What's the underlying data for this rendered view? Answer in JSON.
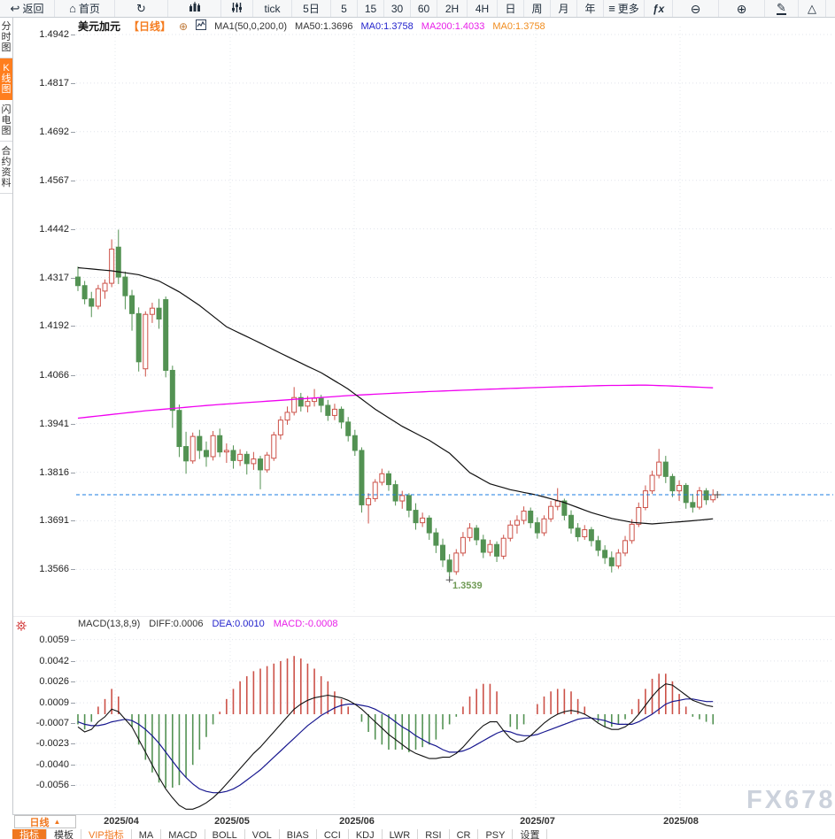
{
  "toolbar": {
    "items": [
      {
        "name": "back",
        "icon": "back-arrow-icon",
        "label": "返回"
      },
      {
        "name": "home",
        "icon": "home-icon",
        "label": "首页"
      },
      {
        "name": "refresh",
        "icon": "refresh-icon",
        "label": ""
      },
      {
        "name": "chart-type",
        "icon": "kline-chart-icon",
        "label": ""
      },
      {
        "name": "indicators",
        "icon": "indicator-sliders-icon",
        "label": ""
      },
      {
        "name": "timeframe-tick",
        "icon": "",
        "label": "tick"
      },
      {
        "name": "timeframe-5day",
        "icon": "",
        "label": "5日"
      },
      {
        "name": "timeframe-5",
        "icon": "",
        "label": "5"
      },
      {
        "name": "timeframe-15",
        "icon": "",
        "label": "15"
      },
      {
        "name": "timeframe-30",
        "icon": "",
        "label": "30"
      },
      {
        "name": "timeframe-60",
        "icon": "",
        "label": "60"
      },
      {
        "name": "timeframe-2h",
        "icon": "",
        "label": "2H"
      },
      {
        "name": "timeframe-4h",
        "icon": "",
        "label": "4H"
      },
      {
        "name": "timeframe-day",
        "icon": "",
        "label": "日"
      },
      {
        "name": "timeframe-week",
        "icon": "",
        "label": "周"
      },
      {
        "name": "timeframe-month",
        "icon": "",
        "label": "月"
      },
      {
        "name": "timeframe-year",
        "icon": "",
        "label": "年"
      },
      {
        "name": "more",
        "icon": "menu-icon",
        "label": "更多"
      },
      {
        "name": "formula",
        "icon": "fx-icon",
        "label": ""
      },
      {
        "name": "zoom-out",
        "icon": "zoom-out-icon",
        "label": ""
      },
      {
        "name": "zoom-in",
        "icon": "zoom-in-icon",
        "label": ""
      },
      {
        "name": "draw",
        "icon": "draw-pencil-icon",
        "label": ""
      },
      {
        "name": "shapes",
        "icon": "shapes-triangle-icon",
        "label": ""
      }
    ]
  },
  "sidebar": {
    "items": [
      {
        "name": "time-chart",
        "label": "分时图",
        "active": false
      },
      {
        "name": "kline-chart",
        "label": "K线图",
        "active": true
      },
      {
        "name": "lightning-chart",
        "label": "闪电图",
        "active": false
      },
      {
        "name": "contract-info",
        "label": "合约资料",
        "active": false
      }
    ]
  },
  "chart_header": {
    "symbol": "美元加元",
    "period": "【日线】",
    "ma_settings": "MA1(50,0,200,0)",
    "ma50": "MA50:1.3696",
    "ma0_blue": "MA0:1.3758",
    "ma200": "MA200:1.4033",
    "ma0_orange": "MA0:1.3758"
  },
  "macd_header": {
    "title": "MACD(13,8,9)",
    "diff": "DIFF:0.0006",
    "dea": "DEA:0.0010",
    "macd": "MACD:-0.0008"
  },
  "price_axis": [
    "1.4942",
    "1.4817",
    "1.4692",
    "1.4567",
    "1.4442",
    "1.4317",
    "1.4192",
    "1.4066",
    "1.3941",
    "1.3816",
    "1.3691",
    "1.3566"
  ],
  "macd_axis": [
    "0.0059",
    "0.0042",
    "0.0026",
    "0.0009",
    "-0.0007",
    "-0.0023",
    "-0.0040",
    "-0.0056"
  ],
  "date_axis": [
    "2025/04",
    "2025/05",
    "2025/06",
    "2025/07",
    "2025/08"
  ],
  "bottom_bar": {
    "period_label": "日线",
    "tabs": [
      {
        "name": "indicators",
        "label": "指标",
        "active": true,
        "vip": false
      },
      {
        "name": "templates",
        "label": "模板",
        "active": false,
        "vip": false
      },
      {
        "name": "vip-indicators",
        "label": "VIP指标",
        "active": false,
        "vip": true
      },
      {
        "name": "ma",
        "label": "MA",
        "active": false,
        "vip": false
      },
      {
        "name": "macd",
        "label": "MACD",
        "active": false,
        "vip": false
      },
      {
        "name": "boll",
        "label": "BOLL",
        "active": false,
        "vip": false
      },
      {
        "name": "vol",
        "label": "VOL",
        "active": false,
        "vip": false
      },
      {
        "name": "bias",
        "label": "BIAS",
        "active": false,
        "vip": false
      },
      {
        "name": "cci",
        "label": "CCI",
        "active": false,
        "vip": false
      },
      {
        "name": "kdj",
        "label": "KDJ",
        "active": false,
        "vip": false
      },
      {
        "name": "lwr",
        "label": "LWR",
        "active": false,
        "vip": false
      },
      {
        "name": "rsi",
        "label": "RSI",
        "active": false,
        "vip": false
      },
      {
        "name": "cr",
        "label": "CR",
        "active": false,
        "vip": false
      },
      {
        "name": "psy",
        "label": "PSY",
        "active": false,
        "vip": false
      },
      {
        "name": "settings",
        "label": "设置",
        "active": false,
        "vip": false
      }
    ]
  },
  "annotations": {
    "low_label": "1.3539",
    "current_price": 1.3758
  },
  "watermark": "FX678",
  "colors": {
    "accent_orange": "#ff7e1e",
    "up_candle": "#cc5148",
    "down_candle": "#539253",
    "ma50_line": "#101010",
    "ma200_line": "#f000f0",
    "diff_line": "#101010",
    "dea_line": "#17178f",
    "current_price_line": "#1b7ce0",
    "low_label_color": "#6f9a55"
  },
  "chart_data": {
    "type": "candlestick",
    "title": "美元加元 日线 (USD/CAD Daily)",
    "x_months": [
      "2025/04",
      "2025/05",
      "2025/06",
      "2025/07",
      "2025/08"
    ],
    "y_range": [
      1.3466,
      1.4992
    ],
    "grid": true,
    "high_of_range": 1.444,
    "low_of_range": 1.3539,
    "last_close": 1.3758,
    "candles": [
      [
        1.4318,
        1.4345,
        1.4282,
        1.4296
      ],
      [
        1.4296,
        1.4308,
        1.4248,
        1.4262
      ],
      [
        1.4262,
        1.428,
        1.4215,
        1.4243
      ],
      [
        1.4243,
        1.4298,
        1.4235,
        1.4288
      ],
      [
        1.4282,
        1.4312,
        1.4262,
        1.4302
      ],
      [
        1.4302,
        1.4415,
        1.4292,
        1.439
      ],
      [
        1.4395,
        1.444,
        1.43,
        1.4318
      ],
      [
        1.4318,
        1.4332,
        1.4235,
        1.427
      ],
      [
        1.427,
        1.4285,
        1.418,
        1.4224
      ],
      [
        1.4224,
        1.424,
        1.4075,
        1.41
      ],
      [
        1.4082,
        1.423,
        1.4062,
        1.4222
      ],
      [
        1.4222,
        1.4252,
        1.42,
        1.4238
      ],
      [
        1.4238,
        1.4262,
        1.4185,
        1.421
      ],
      [
        1.426,
        1.4268,
        1.406,
        1.4078
      ],
      [
        1.4078,
        1.409,
        1.393,
        1.3975
      ],
      [
        1.3975,
        1.399,
        1.3855,
        1.3882
      ],
      [
        1.3882,
        1.392,
        1.3812,
        1.3845
      ],
      [
        1.3845,
        1.3918,
        1.3838,
        1.3908
      ],
      [
        1.3908,
        1.3925,
        1.385,
        1.3872
      ],
      [
        1.3872,
        1.3895,
        1.383,
        1.3856
      ],
      [
        1.3856,
        1.3922,
        1.3846,
        1.391
      ],
      [
        1.391,
        1.3928,
        1.3855,
        1.3868
      ],
      [
        1.3868,
        1.389,
        1.384,
        1.3872
      ],
      [
        1.3872,
        1.3885,
        1.3825,
        1.3846
      ],
      [
        1.3846,
        1.3875,
        1.3832,
        1.3862
      ],
      [
        1.3862,
        1.387,
        1.381,
        1.3838
      ],
      [
        1.3838,
        1.3868,
        1.3822,
        1.385
      ],
      [
        1.385,
        1.3858,
        1.3772,
        1.3822
      ],
      [
        1.3822,
        1.3868,
        1.3815,
        1.386
      ],
      [
        1.3852,
        1.392,
        1.3845,
        1.3912
      ],
      [
        1.3912,
        1.396,
        1.39,
        1.395
      ],
      [
        1.395,
        1.3985,
        1.3938,
        1.397
      ],
      [
        1.397,
        1.4035,
        1.3962,
        1.4008
      ],
      [
        1.4008,
        1.402,
        1.3972,
        1.3986
      ],
      [
        1.3986,
        1.4012,
        1.397,
        1.3998
      ],
      [
        1.3998,
        1.403,
        1.3985,
        1.4006
      ],
      [
        1.4006,
        1.4015,
        1.397,
        1.3988
      ],
      [
        1.3988,
        1.4002,
        1.3948,
        1.3962
      ],
      [
        1.3962,
        1.3992,
        1.395,
        1.3978
      ],
      [
        1.3978,
        1.3985,
        1.3928,
        1.3945
      ],
      [
        1.3945,
        1.3958,
        1.3895,
        1.391
      ],
      [
        1.391,
        1.3925,
        1.3858,
        1.3872
      ],
      [
        1.3872,
        1.388,
        1.3712,
        1.3732
      ],
      [
        1.3732,
        1.3762,
        1.3684,
        1.3748
      ],
      [
        1.3748,
        1.3798,
        1.374,
        1.379
      ],
      [
        1.379,
        1.3825,
        1.3782,
        1.3812
      ],
      [
        1.3812,
        1.382,
        1.3768,
        1.3784
      ],
      [
        1.3784,
        1.3795,
        1.373,
        1.3742
      ],
      [
        1.3742,
        1.3768,
        1.3722,
        1.3756
      ],
      [
        1.3756,
        1.3762,
        1.37,
        1.3718
      ],
      [
        1.3718,
        1.3736,
        1.3668,
        1.3686
      ],
      [
        1.3686,
        1.3712,
        1.3675,
        1.3698
      ],
      [
        1.3698,
        1.3705,
        1.3642,
        1.366
      ],
      [
        1.366,
        1.3672,
        1.3608,
        1.3628
      ],
      [
        1.3628,
        1.3645,
        1.3572,
        1.359
      ],
      [
        1.359,
        1.3605,
        1.3539,
        1.356
      ],
      [
        1.356,
        1.3618,
        1.3552,
        1.3608
      ],
      [
        1.3608,
        1.3662,
        1.36,
        1.3648
      ],
      [
        1.3648,
        1.3685,
        1.3638,
        1.3672
      ],
      [
        1.3672,
        1.368,
        1.3628,
        1.3642
      ],
      [
        1.3642,
        1.3655,
        1.3595,
        1.361
      ],
      [
        1.361,
        1.3642,
        1.36,
        1.363
      ],
      [
        1.363,
        1.3638,
        1.3585,
        1.36
      ],
      [
        1.36,
        1.3655,
        1.3592,
        1.3646
      ],
      [
        1.3646,
        1.3692,
        1.3638,
        1.368
      ],
      [
        1.368,
        1.3705,
        1.3658,
        1.3692
      ],
      [
        1.3692,
        1.3728,
        1.3682,
        1.3716
      ],
      [
        1.3716,
        1.3725,
        1.3672,
        1.3686
      ],
      [
        1.3686,
        1.37,
        1.3645,
        1.366
      ],
      [
        1.366,
        1.3705,
        1.3652,
        1.3696
      ],
      [
        1.3696,
        1.3742,
        1.3688,
        1.3728
      ],
      [
        1.3728,
        1.3775,
        1.3718,
        1.3742
      ],
      [
        1.3742,
        1.3748,
        1.3692,
        1.3705
      ],
      [
        1.3705,
        1.3718,
        1.3658,
        1.3672
      ],
      [
        1.3672,
        1.3685,
        1.3638,
        1.365
      ],
      [
        1.365,
        1.368,
        1.3642,
        1.3668
      ],
      [
        1.3668,
        1.3675,
        1.3625,
        1.364
      ],
      [
        1.364,
        1.3652,
        1.36,
        1.3615
      ],
      [
        1.3615,
        1.3628,
        1.358,
        1.3596
      ],
      [
        1.3596,
        1.3612,
        1.3558,
        1.3575
      ],
      [
        1.3575,
        1.3618,
        1.3568,
        1.3608
      ],
      [
        1.3608,
        1.3652,
        1.36,
        1.364
      ],
      [
        1.364,
        1.3695,
        1.3632,
        1.3682
      ],
      [
        1.3682,
        1.3738,
        1.3675,
        1.3725
      ],
      [
        1.3725,
        1.3782,
        1.3718,
        1.3768
      ],
      [
        1.3768,
        1.382,
        1.376,
        1.3808
      ],
      [
        1.3808,
        1.3876,
        1.38,
        1.3842
      ],
      [
        1.3842,
        1.3858,
        1.3788,
        1.3805
      ],
      [
        1.3805,
        1.3812,
        1.3752,
        1.3768
      ],
      [
        1.3768,
        1.3795,
        1.3742,
        1.3782
      ],
      [
        1.3782,
        1.3788,
        1.3722,
        1.3738
      ],
      [
        1.3738,
        1.376,
        1.3712,
        1.3726
      ],
      [
        1.3726,
        1.3778,
        1.372,
        1.3768
      ],
      [
        1.3768,
        1.3775,
        1.3732,
        1.3745
      ],
      [
        1.3745,
        1.3772,
        1.3738,
        1.3758
      ]
    ],
    "ma50_points": [
      [
        0,
        1.4342
      ],
      [
        5,
        1.4334
      ],
      [
        9,
        1.4324
      ],
      [
        12,
        1.4308
      ],
      [
        15,
        1.428
      ],
      [
        18,
        1.4245
      ],
      [
        22,
        1.419
      ],
      [
        27,
        1.4148
      ],
      [
        32,
        1.4105
      ],
      [
        36,
        1.4072
      ],
      [
        40,
        1.403
      ],
      [
        44,
        1.3978
      ],
      [
        48,
        1.3934
      ],
      [
        52,
        1.3898
      ],
      [
        55,
        1.3865
      ],
      [
        58,
        1.3815
      ],
      [
        61,
        1.3786
      ],
      [
        64,
        1.3771
      ],
      [
        68,
        1.3757
      ],
      [
        72,
        1.3738
      ],
      [
        76,
        1.3712
      ],
      [
        79,
        1.3697
      ],
      [
        82,
        1.3687
      ],
      [
        85,
        1.3683
      ],
      [
        88,
        1.3687
      ],
      [
        91,
        1.3691
      ],
      [
        94,
        1.3696
      ]
    ],
    "ma200_points": [
      [
        0,
        1.3955
      ],
      [
        10,
        1.3974
      ],
      [
        20,
        1.3989
      ],
      [
        30,
        1.4001
      ],
      [
        40,
        1.4013
      ],
      [
        50,
        1.4022
      ],
      [
        60,
        1.4029
      ],
      [
        70,
        1.4035
      ],
      [
        78,
        1.4039
      ],
      [
        84,
        1.404
      ],
      [
        89,
        1.4037
      ],
      [
        94,
        1.4033
      ]
    ],
    "macd": {
      "params": "13,8,9",
      "diff": [
        -0.001,
        -0.0014,
        -0.0012,
        -0.0006,
        -0.0002,
        0.0004,
        0.0002,
        -0.0004,
        -0.001,
        -0.002,
        -0.003,
        -0.004,
        -0.005,
        -0.0059,
        -0.0066,
        -0.0072,
        -0.0075,
        -0.0075,
        -0.0073,
        -0.007,
        -0.0066,
        -0.0061,
        -0.0055,
        -0.0049,
        -0.0043,
        -0.0037,
        -0.0031,
        -0.0026,
        -0.002,
        -0.0014,
        -0.0008,
        -0.0002,
        0.0004,
        0.0008,
        0.0011,
        0.0013,
        0.0014,
        0.0015,
        0.0014,
        0.0013,
        0.0011,
        0.0008,
        0.0004,
        -0.0001,
        -0.0006,
        -0.0011,
        -0.0016,
        -0.002,
        -0.0024,
        -0.0028,
        -0.0031,
        -0.0033,
        -0.0035,
        -0.0035,
        -0.0034,
        -0.0034,
        -0.0031,
        -0.0026,
        -0.002,
        -0.0014,
        -0.0009,
        -0.0006,
        -0.0006,
        -0.0013,
        -0.0019,
        -0.0022,
        -0.0021,
        -0.0017,
        -0.0012,
        -0.0007,
        -0.0003,
        0.0,
        0.0002,
        0.0003,
        0.0002,
        0.0,
        -0.0003,
        -0.0007,
        -0.001,
        -0.0012,
        -0.0012,
        -0.001,
        -0.0006,
        0.0,
        0.0007,
        0.0014,
        0.002,
        0.0024,
        0.0023,
        0.0019,
        0.0015,
        0.0011,
        0.0009,
        0.0007,
        0.0006
      ],
      "dea": [
        -0.0006,
        -0.0008,
        -0.0009,
        -0.0009,
        -0.0008,
        -0.0006,
        -0.0005,
        -0.0004,
        -0.0005,
        -0.0008,
        -0.0012,
        -0.0017,
        -0.0023,
        -0.003,
        -0.0037,
        -0.0044,
        -0.005,
        -0.0055,
        -0.0059,
        -0.0061,
        -0.0062,
        -0.0062,
        -0.0061,
        -0.0059,
        -0.0056,
        -0.0052,
        -0.0048,
        -0.0044,
        -0.0039,
        -0.0034,
        -0.0029,
        -0.0024,
        -0.0019,
        -0.0014,
        -0.0009,
        -0.0005,
        -0.0001,
        0.0002,
        0.0005,
        0.0007,
        0.0008,
        0.0008,
        0.0007,
        0.0006,
        0.0004,
        0.0001,
        -0.0002,
        -0.0006,
        -0.001,
        -0.0013,
        -0.0017,
        -0.002,
        -0.0023,
        -0.0025,
        -0.0028,
        -0.003,
        -0.003,
        -0.0029,
        -0.0027,
        -0.0024,
        -0.0021,
        -0.0018,
        -0.0015,
        -0.0013,
        -0.0014,
        -0.0016,
        -0.0017,
        -0.0017,
        -0.0016,
        -0.0014,
        -0.0012,
        -0.001,
        -0.0008,
        -0.0006,
        -0.0004,
        -0.0003,
        -0.0003,
        -0.0004,
        -0.0005,
        -0.0007,
        -0.0008,
        -0.0008,
        -0.0008,
        -0.0006,
        -0.0003,
        0.0,
        0.0004,
        0.0008,
        0.001,
        0.0011,
        0.0012,
        0.0012,
        0.0011,
        0.001,
        0.001
      ]
    }
  }
}
